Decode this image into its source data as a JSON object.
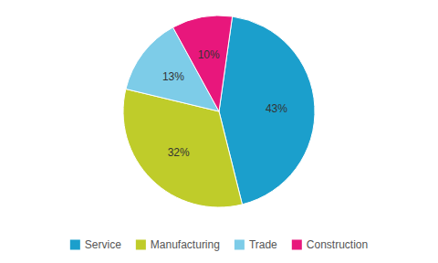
{
  "chart_data": {
    "type": "pie",
    "categories": [
      "Service",
      "Manufacturing",
      "Trade",
      "Construction"
    ],
    "values": [
      43,
      32,
      13,
      10
    ],
    "value_labels": [
      "43%",
      "32%",
      "13%",
      "10%"
    ],
    "colors": [
      "#1B9FCC",
      "#BFCC2A",
      "#7DCCE8",
      "#E8177C"
    ],
    "data_labels": true,
    "legend": "bottom"
  }
}
